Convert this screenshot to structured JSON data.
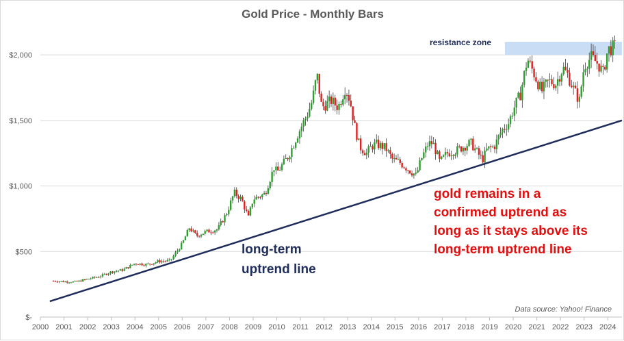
{
  "chart_data": {
    "type": "candlestick",
    "title": "Gold Price - Monthly Bars",
    "source_note": "Data source: Yahoo! Finance",
    "y_axis": {
      "ylim": [
        0,
        2100
      ],
      "ticks": [
        {
          "value": 0,
          "label": "$-"
        },
        {
          "value": 500,
          "label": "$500"
        },
        {
          "value": 1000,
          "label": "$1,000"
        },
        {
          "value": 1500,
          "label": "$1,500"
        },
        {
          "value": 2000,
          "label": "$2,000"
        }
      ],
      "grid": true
    },
    "x_axis": {
      "xlim": [
        2000.0,
        2024.6
      ],
      "ticks": [
        "2000",
        "2001",
        "2002",
        "2003",
        "2004",
        "2005",
        "2006",
        "2007",
        "2008",
        "2009",
        "2010",
        "2011",
        "2012",
        "2013",
        "2014",
        "2015",
        "2016",
        "2017",
        "2018",
        "2019",
        "2020",
        "2021",
        "2022",
        "2023",
        "2024"
      ]
    },
    "colors": {
      "up": "#2e9e2e",
      "down": "#e02020",
      "trendline": "#1f2d5a",
      "zone": "#c9ddf5"
    },
    "price_path": [
      [
        2000.55,
        275
      ],
      [
        2001.0,
        270
      ],
      [
        2001.5,
        268
      ],
      [
        2002.0,
        290
      ],
      [
        2002.5,
        310
      ],
      [
        2003.0,
        345
      ],
      [
        2003.5,
        360
      ],
      [
        2004.0,
        410
      ],
      [
        2004.5,
        400
      ],
      [
        2005.0,
        425
      ],
      [
        2005.5,
        430
      ],
      [
        2006.0,
        560
      ],
      [
        2006.3,
        680
      ],
      [
        2006.6,
        620
      ],
      [
        2007.0,
        650
      ],
      [
        2007.5,
        670
      ],
      [
        2007.9,
        800
      ],
      [
        2008.2,
        950
      ],
      [
        2008.5,
        900
      ],
      [
        2008.8,
        760
      ],
      [
        2009.0,
        900
      ],
      [
        2009.5,
        940
      ],
      [
        2009.9,
        1150
      ],
      [
        2010.0,
        1100
      ],
      [
        2010.5,
        1230
      ],
      [
        2010.9,
        1400
      ],
      [
        2011.3,
        1550
      ],
      [
        2011.5,
        1650
      ],
      [
        2011.7,
        1850
      ],
      [
        2011.9,
        1600
      ],
      [
        2012.3,
        1650
      ],
      [
        2012.6,
        1600
      ],
      [
        2012.9,
        1750
      ],
      [
        2013.1,
        1650
      ],
      [
        2013.3,
        1450
      ],
      [
        2013.5,
        1300
      ],
      [
        2013.8,
        1250
      ],
      [
        2014.0,
        1300
      ],
      [
        2014.2,
        1320
      ],
      [
        2014.6,
        1290
      ],
      [
        2014.9,
        1200
      ],
      [
        2015.2,
        1180
      ],
      [
        2015.6,
        1120
      ],
      [
        2015.9,
        1080
      ],
      [
        2016.1,
        1200
      ],
      [
        2016.4,
        1320
      ],
      [
        2016.6,
        1330
      ],
      [
        2016.9,
        1180
      ],
      [
        2017.2,
        1250
      ],
      [
        2017.6,
        1270
      ],
      [
        2017.9,
        1300
      ],
      [
        2018.2,
        1330
      ],
      [
        2018.5,
        1250
      ],
      [
        2018.7,
        1200
      ],
      [
        2018.9,
        1280
      ],
      [
        2019.2,
        1300
      ],
      [
        2019.5,
        1420
      ],
      [
        2019.8,
        1480
      ],
      [
        2020.0,
        1580
      ],
      [
        2020.3,
        1700
      ],
      [
        2020.6,
        1970
      ],
      [
        2020.9,
        1850
      ],
      [
        2021.2,
        1720
      ],
      [
        2021.5,
        1800
      ],
      [
        2021.8,
        1780
      ],
      [
        2022.1,
        1900
      ],
      [
        2022.3,
        1850
      ],
      [
        2022.6,
        1720
      ],
      [
        2022.8,
        1650
      ],
      [
        2023.0,
        1920
      ],
      [
        2023.3,
        1980
      ],
      [
        2023.6,
        1930
      ],
      [
        2023.8,
        1860
      ],
      [
        2024.0,
        2040
      ],
      [
        2024.3,
        2060
      ]
    ],
    "trendline": {
      "start": [
        2000.4,
        120
      ],
      "end": [
        2024.6,
        1500
      ]
    },
    "resistance_zone": {
      "x": [
        2019.65,
        2024.6
      ],
      "y": [
        2000,
        2100
      ]
    },
    "annotations": {
      "resistance": "resistance zone",
      "uptrend_line": [
        "long-term",
        "uptrend line"
      ],
      "confirmed": [
        "gold remains in a",
        "confirmed uptrend as",
        "long as it stays above its",
        "long-term uptrend line"
      ]
    }
  }
}
